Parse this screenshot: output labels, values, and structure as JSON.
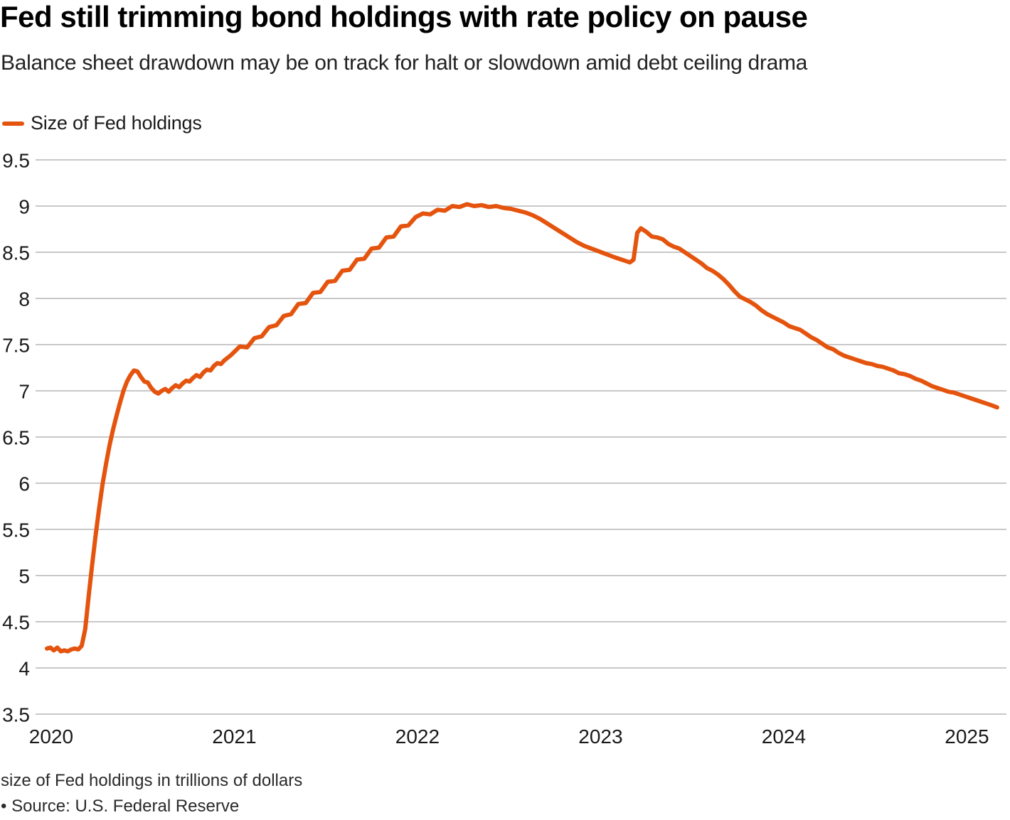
{
  "header": {
    "title": "Fed still trimming bond holdings with rate policy on pause",
    "subtitle": "Balance sheet drawdown may be on track for halt or slowdown amid debt ceiling drama"
  },
  "legend": {
    "label": "Size of Fed holdings"
  },
  "footer": {
    "note": "size of Fed holdings in trillions of dollars",
    "source": "• Source: U.S. Federal Reserve"
  },
  "chart_data": {
    "type": "line",
    "title": "Size of Fed holdings",
    "ylabel": "size of Fed holdings in trillions of dollars",
    "xlabel": "",
    "grid": true,
    "legend_position": "top-left",
    "line_color": "#e4540e",
    "grid_color": "#c8c8c8",
    "tick_color": "#1a1a1a",
    "x_ticks": [
      2020,
      2021,
      2022,
      2023,
      2024,
      2025
    ],
    "y_ticks": [
      9.5,
      9,
      8.5,
      8,
      7.5,
      7,
      6.5,
      6,
      5.5,
      5,
      4.5,
      4,
      3.5
    ],
    "x_range": [
      2019.915,
      2025.216
    ],
    "y_range": [
      3.5,
      9.5
    ],
    "series": [
      {
        "name": "Size of Fed holdings",
        "points": [
          [
            2019.977,
            4.21
          ],
          [
            2019.996,
            4.22
          ],
          [
            2020.015,
            4.19
          ],
          [
            2020.034,
            4.22
          ],
          [
            2020.053,
            4.18
          ],
          [
            2020.072,
            4.19
          ],
          [
            2020.091,
            4.18
          ],
          [
            2020.11,
            4.2
          ],
          [
            2020.129,
            4.21
          ],
          [
            2020.148,
            4.2
          ],
          [
            2020.167,
            4.24
          ],
          [
            2020.186,
            4.42
          ],
          [
            2020.205,
            4.78
          ],
          [
            2020.224,
            5.12
          ],
          [
            2020.243,
            5.44
          ],
          [
            2020.262,
            5.73
          ],
          [
            2020.281,
            5.99
          ],
          [
            2020.3,
            6.21
          ],
          [
            2020.319,
            6.41
          ],
          [
            2020.338,
            6.58
          ],
          [
            2020.357,
            6.73
          ],
          [
            2020.376,
            6.87
          ],
          [
            2020.395,
            7.0
          ],
          [
            2020.414,
            7.1
          ],
          [
            2020.433,
            7.17
          ],
          [
            2020.452,
            7.22
          ],
          [
            2020.471,
            7.21
          ],
          [
            2020.49,
            7.15
          ],
          [
            2020.509,
            7.1
          ],
          [
            2020.528,
            7.09
          ],
          [
            2020.547,
            7.03
          ],
          [
            2020.566,
            6.99
          ],
          [
            2020.585,
            6.97
          ],
          [
            2020.604,
            7.0
          ],
          [
            2020.623,
            7.02
          ],
          [
            2020.642,
            6.99
          ],
          [
            2020.661,
            7.03
          ],
          [
            2020.68,
            7.06
          ],
          [
            2020.699,
            7.04
          ],
          [
            2020.718,
            7.08
          ],
          [
            2020.737,
            7.11
          ],
          [
            2020.756,
            7.1
          ],
          [
            2020.775,
            7.14
          ],
          [
            2020.794,
            7.17
          ],
          [
            2020.813,
            7.15
          ],
          [
            2020.832,
            7.2
          ],
          [
            2020.851,
            7.23
          ],
          [
            2020.87,
            7.22
          ],
          [
            2020.889,
            7.27
          ],
          [
            2020.908,
            7.3
          ],
          [
            2020.927,
            7.29
          ],
          [
            2020.946,
            7.33
          ],
          [
            2020.965,
            7.36
          ],
          [
            2020.984,
            7.39
          ],
          [
            2021.03,
            7.48
          ],
          [
            2021.07,
            7.47
          ],
          [
            2021.11,
            7.57
          ],
          [
            2021.15,
            7.59
          ],
          [
            2021.19,
            7.69
          ],
          [
            2021.23,
            7.71
          ],
          [
            2021.27,
            7.81
          ],
          [
            2021.31,
            7.83
          ],
          [
            2021.35,
            7.94
          ],
          [
            2021.39,
            7.95
          ],
          [
            2021.43,
            8.06
          ],
          [
            2021.47,
            8.07
          ],
          [
            2021.51,
            8.18
          ],
          [
            2021.55,
            8.19
          ],
          [
            2021.59,
            8.3
          ],
          [
            2021.63,
            8.31
          ],
          [
            2021.67,
            8.42
          ],
          [
            2021.71,
            8.43
          ],
          [
            2021.75,
            8.54
          ],
          [
            2021.79,
            8.55
          ],
          [
            2021.83,
            8.66
          ],
          [
            2021.87,
            8.67
          ],
          [
            2021.91,
            8.78
          ],
          [
            2021.95,
            8.79
          ],
          [
            2021.99,
            8.88
          ],
          [
            2022.03,
            8.92
          ],
          [
            2022.07,
            8.91
          ],
          [
            2022.11,
            8.96
          ],
          [
            2022.15,
            8.95
          ],
          [
            2022.19,
            9.0
          ],
          [
            2022.23,
            8.99
          ],
          [
            2022.27,
            9.02
          ],
          [
            2022.31,
            9.0
          ],
          [
            2022.35,
            9.01
          ],
          [
            2022.39,
            8.99
          ],
          [
            2022.43,
            9.0
          ],
          [
            2022.47,
            8.98
          ],
          [
            2022.51,
            8.97
          ],
          [
            2022.55,
            8.95
          ],
          [
            2022.59,
            8.93
          ],
          [
            2022.63,
            8.9
          ],
          [
            2022.67,
            8.86
          ],
          [
            2022.71,
            8.81
          ],
          [
            2022.75,
            8.76
          ],
          [
            2022.79,
            8.71
          ],
          [
            2022.83,
            8.66
          ],
          [
            2022.87,
            8.61
          ],
          [
            2022.91,
            8.57
          ],
          [
            2022.95,
            8.54
          ],
          [
            2022.99,
            8.51
          ],
          [
            2023.03,
            8.48
          ],
          [
            2023.07,
            8.45
          ],
          [
            2023.1,
            8.43
          ],
          [
            2023.13,
            8.41
          ],
          [
            2023.16,
            8.39
          ],
          [
            2023.18,
            8.42
          ],
          [
            2023.2,
            8.71
          ],
          [
            2023.22,
            8.76
          ],
          [
            2023.25,
            8.72
          ],
          [
            2023.28,
            8.67
          ],
          [
            2023.31,
            8.66
          ],
          [
            2023.34,
            8.64
          ],
          [
            2023.37,
            8.59
          ],
          [
            2023.4,
            8.56
          ],
          [
            2023.43,
            8.54
          ],
          [
            2023.46,
            8.5
          ],
          [
            2023.49,
            8.46
          ],
          [
            2023.52,
            8.42
          ],
          [
            2023.55,
            8.38
          ],
          [
            2023.58,
            8.33
          ],
          [
            2023.61,
            8.3
          ],
          [
            2023.64,
            8.26
          ],
          [
            2023.67,
            8.21
          ],
          [
            2023.7,
            8.15
          ],
          [
            2023.73,
            8.08
          ],
          [
            2023.76,
            8.02
          ],
          [
            2023.79,
            7.99
          ],
          [
            2023.82,
            7.96
          ],
          [
            2023.85,
            7.92
          ],
          [
            2023.88,
            7.87
          ],
          [
            2023.91,
            7.83
          ],
          [
            2023.94,
            7.8
          ],
          [
            2023.97,
            7.77
          ],
          [
            2024.0,
            7.74
          ],
          [
            2024.03,
            7.7
          ],
          [
            2024.06,
            7.68
          ],
          [
            2024.09,
            7.66
          ],
          [
            2024.12,
            7.62
          ],
          [
            2024.15,
            7.58
          ],
          [
            2024.18,
            7.55
          ],
          [
            2024.21,
            7.51
          ],
          [
            2024.24,
            7.47
          ],
          [
            2024.27,
            7.45
          ],
          [
            2024.3,
            7.41
          ],
          [
            2024.33,
            7.38
          ],
          [
            2024.36,
            7.36
          ],
          [
            2024.39,
            7.34
          ],
          [
            2024.42,
            7.32
          ],
          [
            2024.45,
            7.3
          ],
          [
            2024.48,
            7.29
          ],
          [
            2024.51,
            7.27
          ],
          [
            2024.54,
            7.26
          ],
          [
            2024.57,
            7.24
          ],
          [
            2024.6,
            7.22
          ],
          [
            2024.63,
            7.19
          ],
          [
            2024.66,
            7.18
          ],
          [
            2024.69,
            7.16
          ],
          [
            2024.72,
            7.13
          ],
          [
            2024.75,
            7.11
          ],
          [
            2024.78,
            7.08
          ],
          [
            2024.81,
            7.05
          ],
          [
            2024.84,
            7.03
          ],
          [
            2024.87,
            7.01
          ],
          [
            2024.9,
            6.99
          ],
          [
            2024.93,
            6.98
          ],
          [
            2024.96,
            6.96
          ],
          [
            2024.99,
            6.94
          ],
          [
            2025.02,
            6.92
          ],
          [
            2025.05,
            6.9
          ],
          [
            2025.08,
            6.88
          ],
          [
            2025.11,
            6.86
          ],
          [
            2025.14,
            6.84
          ],
          [
            2025.165,
            6.82
          ]
        ]
      }
    ]
  }
}
